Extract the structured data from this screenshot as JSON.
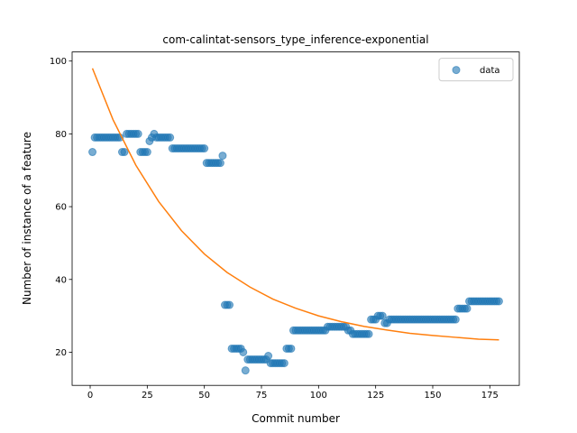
{
  "chart_data": {
    "type": "scatter",
    "title": "com-calintat-sensors_type_inference-exponential",
    "xlabel": "Commit number",
    "ylabel": "Number of instance of a feature",
    "legend": "upper right",
    "xlim": [
      -7.9,
      187.9
    ],
    "ylim": [
      10.9,
      102.5
    ],
    "xticks": [
      0,
      25,
      50,
      75,
      100,
      125,
      150,
      175
    ],
    "yticks": [
      20,
      40,
      60,
      80,
      100
    ],
    "series": [
      {
        "name": "data",
        "color": "#1f77b4",
        "style": "marker",
        "x": [
          1,
          2,
          3,
          4,
          5,
          6,
          7,
          8,
          9,
          10,
          11,
          12,
          13,
          14,
          15,
          16,
          17,
          18,
          19,
          20,
          21,
          22,
          23,
          24,
          25,
          26,
          27,
          28,
          29,
          30,
          31,
          32,
          33,
          34,
          35,
          36,
          37,
          38,
          39,
          40,
          41,
          42,
          43,
          44,
          45,
          46,
          47,
          48,
          49,
          50,
          51,
          52,
          53,
          54,
          55,
          56,
          57,
          58,
          59,
          60,
          61,
          62,
          63,
          64,
          65,
          66,
          67,
          68,
          69,
          70,
          71,
          72,
          73,
          74,
          75,
          76,
          77,
          78,
          79,
          80,
          81,
          82,
          83,
          84,
          85,
          86,
          87,
          88,
          89,
          90,
          91,
          92,
          93,
          94,
          95,
          96,
          97,
          98,
          99,
          100,
          101,
          102,
          103,
          104,
          105,
          106,
          107,
          108,
          109,
          110,
          111,
          112,
          113,
          114,
          115,
          116,
          117,
          118,
          119,
          120,
          121,
          122,
          123,
          124,
          125,
          126,
          127,
          128,
          129,
          130,
          131,
          132,
          133,
          134,
          135,
          136,
          137,
          138,
          139,
          140,
          141,
          142,
          143,
          144,
          145,
          146,
          147,
          148,
          149,
          150,
          151,
          152,
          153,
          154,
          155,
          156,
          157,
          158,
          159,
          160,
          161,
          162,
          163,
          164,
          165,
          166,
          167,
          168,
          169,
          170,
          171,
          172,
          173,
          174,
          175,
          176,
          177,
          178,
          179
        ],
        "values": [
          75,
          79,
          79,
          79,
          79,
          79,
          79,
          79,
          79,
          79,
          79,
          79,
          79,
          75,
          75,
          80,
          80,
          80,
          80,
          80,
          80,
          75,
          75,
          75,
          75,
          78,
          79,
          80,
          79,
          79,
          79,
          79,
          79,
          79,
          79,
          76,
          76,
          76,
          76,
          76,
          76,
          76,
          76,
          76,
          76,
          76,
          76,
          76,
          76,
          76,
          72,
          72,
          72,
          72,
          72,
          72,
          72,
          74,
          33,
          33,
          33,
          21,
          21,
          21,
          21,
          21,
          20,
          15,
          18,
          18,
          18,
          18,
          18,
          18,
          18,
          18,
          18,
          19,
          17,
          17,
          17,
          17,
          17,
          17,
          17,
          21,
          21,
          21,
          26,
          26,
          26,
          26,
          26,
          26,
          26,
          26,
          26,
          26,
          26,
          26,
          26,
          26,
          26,
          27,
          27,
          27,
          27,
          27,
          27,
          27,
          27,
          27,
          26,
          26,
          25,
          25,
          25,
          25,
          25,
          25,
          25,
          25,
          29,
          29,
          29,
          30,
          30,
          30,
          28,
          28,
          29,
          29,
          29,
          29,
          29,
          29,
          29,
          29,
          29,
          29,
          29,
          29,
          29,
          29,
          29,
          29,
          29,
          29,
          29,
          29,
          29,
          29,
          29,
          29,
          29,
          29,
          29,
          29,
          29,
          29,
          32,
          32,
          32,
          32,
          32,
          34,
          34,
          34,
          34,
          34,
          34,
          34,
          34,
          34,
          34,
          34,
          34,
          34,
          34
        ]
      },
      {
        "color": "#ff7f0e",
        "style": "line",
        "x": [
          1,
          10,
          20,
          30,
          40,
          50,
          60,
          70,
          80,
          90,
          100,
          110,
          120,
          130,
          140,
          150,
          160,
          170,
          179
        ],
        "values": [
          98,
          83.9,
          71.4,
          61.4,
          53.4,
          47.0,
          41.9,
          37.9,
          34.6,
          32.1,
          30.0,
          28.4,
          27.1,
          26.1,
          25.2,
          24.6,
          24.1,
          23.6,
          23.4
        ]
      }
    ]
  }
}
